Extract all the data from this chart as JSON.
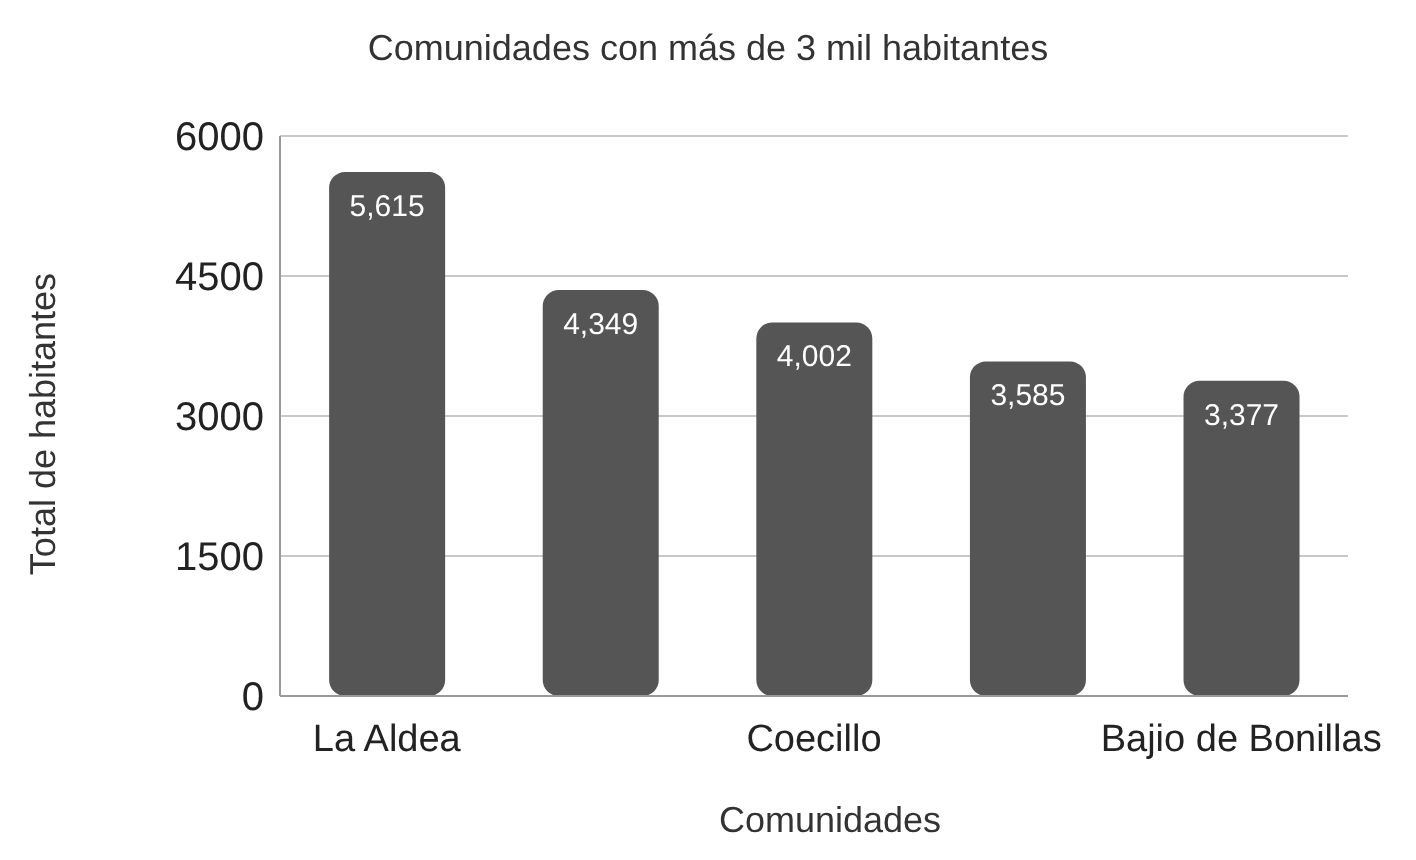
{
  "chart_data": {
    "type": "bar",
    "title": "Comunidades con más de 3 mil habitantes",
    "xlabel": "Comunidades",
    "ylabel": "Total de habitantes",
    "categories": [
      "La Aldea",
      null,
      "Coecillo",
      null,
      "Bajio de Bonillas"
    ],
    "values": [
      5615,
      4349,
      4002,
      3585,
      3377
    ],
    "value_labels": [
      "5,615",
      "4,349",
      "4,002",
      "3,585",
      "3,377"
    ],
    "color": "#555555",
    "ylim": [
      0,
      6000
    ],
    "yticks": [
      0,
      1500,
      3000,
      4500,
      6000
    ],
    "grid": "y"
  }
}
